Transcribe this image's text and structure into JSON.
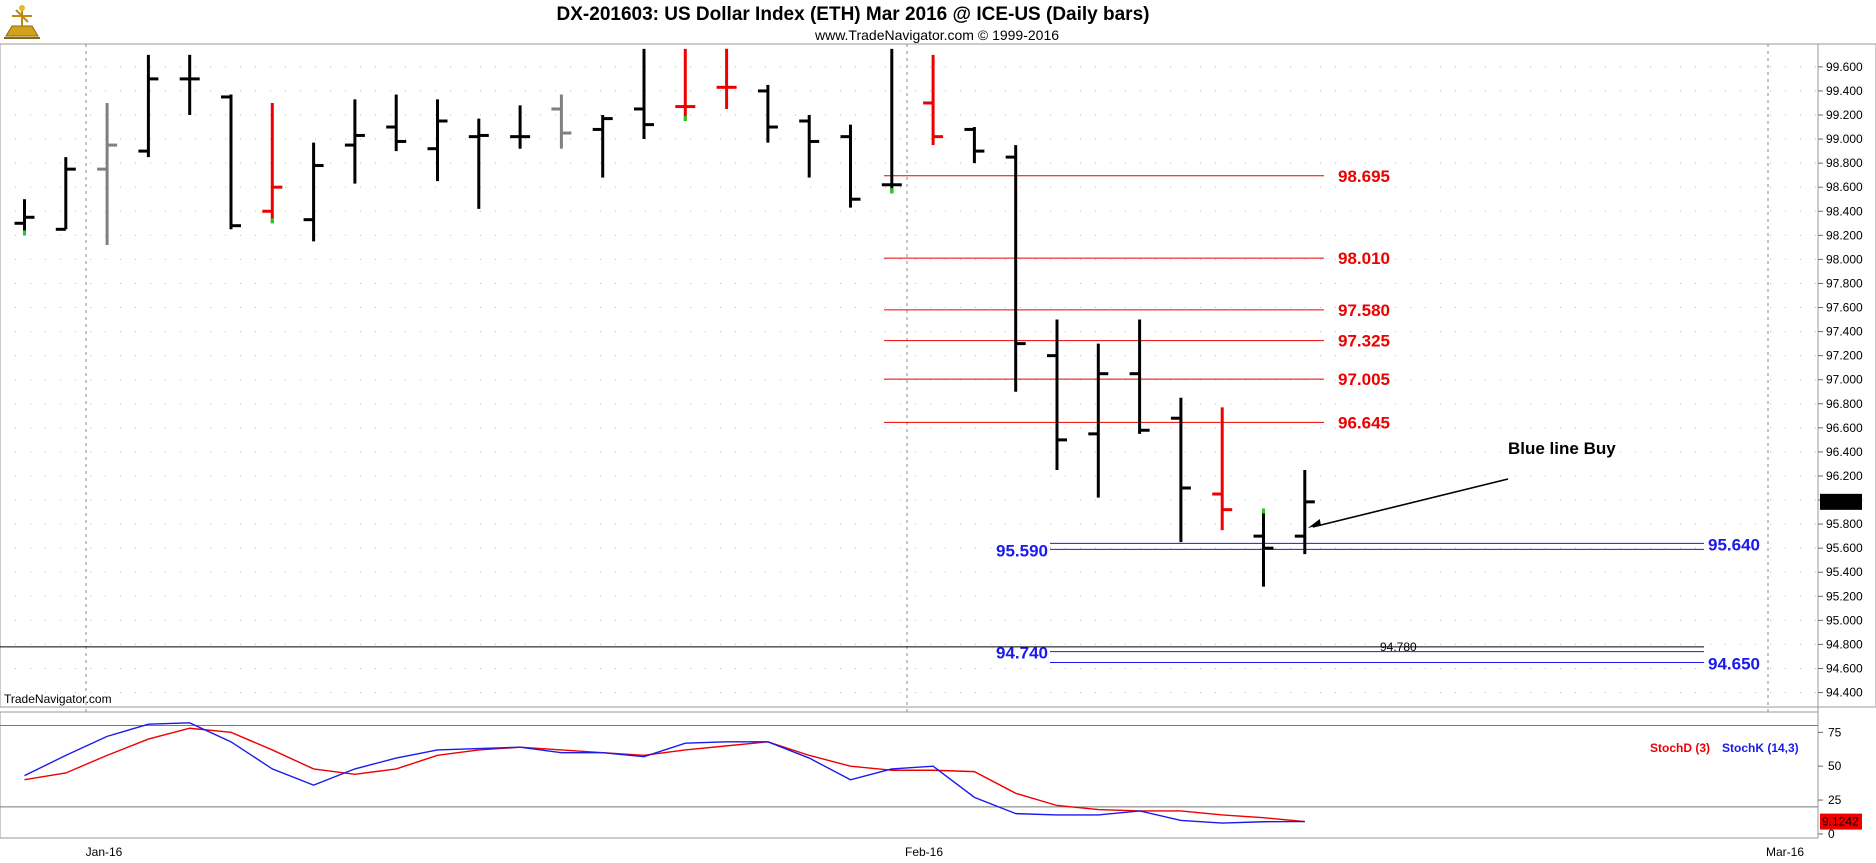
{
  "header": {
    "title": "DX-201603:  US Dollar Index (ETH) Mar 2016 @ ICE-US  (Daily bars)",
    "subtitle": "www.TradeNavigator.com © 1999-2016"
  },
  "watermark": "TradeNavigator.com",
  "icons": [
    "sextant-logo-icon"
  ],
  "colors": {
    "up_bar": "#000000",
    "down_bar": "#ee0000",
    "neutral_bar": "#808080",
    "tick_green": "#22cc22",
    "resistance": "#ee0000",
    "support": "#1a1aee"
  },
  "chart_data": [
    {
      "type": "ohlc",
      "title": "DX-201603:  US Dollar Index (ETH) Mar 2016 @ ICE-US  (Daily bars)",
      "x_tick_labels": [
        "Jan-16",
        "Feb-16",
        "Mar-16"
      ],
      "ylim": [
        94.3,
        99.7
      ],
      "y_tick_labels": [
        "99.600",
        "99.400",
        "99.200",
        "99.000",
        "98.800",
        "98.600",
        "98.400",
        "98.200",
        "98.000",
        "97.800",
        "97.600",
        "97.400",
        "97.200",
        "97.000",
        "96.800",
        "96.600",
        "96.400",
        "96.200",
        "96.000",
        "95.800",
        "95.600",
        "95.400",
        "95.200",
        "95.000",
        "94.800",
        "94.600",
        "94.400"
      ],
      "last_price_label": "95.985",
      "bars": [
        {
          "o": 98.3,
          "h": 98.5,
          "l": 98.2,
          "c": 98.35,
          "color": "black",
          "lowtick": "green"
        },
        {
          "o": 98.25,
          "h": 98.85,
          "l": 98.25,
          "c": 98.75,
          "color": "black"
        },
        {
          "o": 98.75,
          "h": 99.3,
          "l": 98.12,
          "c": 98.95,
          "color": "gray"
        },
        {
          "o": 98.9,
          "h": 99.7,
          "l": 98.85,
          "c": 99.5,
          "color": "black"
        },
        {
          "o": 99.5,
          "h": 99.7,
          "l": 99.2,
          "c": 99.5,
          "color": "black"
        },
        {
          "o": 99.35,
          "h": 99.37,
          "l": 98.25,
          "c": 98.28,
          "color": "black"
        },
        {
          "o": 98.4,
          "h": 99.3,
          "l": 98.3,
          "c": 98.6,
          "color": "red",
          "lowtick": "green"
        },
        {
          "o": 98.33,
          "h": 98.97,
          "l": 98.15,
          "c": 98.78,
          "color": "black"
        },
        {
          "o": 98.95,
          "h": 99.33,
          "l": 98.63,
          "c": 99.03,
          "color": "black"
        },
        {
          "o": 99.1,
          "h": 99.37,
          "l": 98.9,
          "c": 98.98,
          "color": "black"
        },
        {
          "o": 98.92,
          "h": 99.33,
          "l": 98.65,
          "c": 99.15,
          "color": "black"
        },
        {
          "o": 99.02,
          "h": 99.17,
          "l": 98.42,
          "c": 99.03,
          "color": "black"
        },
        {
          "o": 99.02,
          "h": 99.28,
          "l": 98.92,
          "c": 99.02,
          "color": "black"
        },
        {
          "o": 99.25,
          "h": 99.37,
          "l": 98.92,
          "c": 99.05,
          "color": "gray"
        },
        {
          "o": 99.08,
          "h": 99.2,
          "l": 98.68,
          "c": 99.17,
          "color": "black"
        },
        {
          "o": 99.25,
          "h": 99.75,
          "l": 99.0,
          "c": 99.12,
          "color": "black"
        },
        {
          "o": 99.27,
          "h": 99.75,
          "l": 99.15,
          "c": 99.27,
          "color": "red",
          "lowtick": "green"
        },
        {
          "o": 99.43,
          "h": 99.75,
          "l": 99.25,
          "c": 99.43,
          "color": "red"
        },
        {
          "o": 99.4,
          "h": 99.45,
          "l": 98.97,
          "c": 99.1,
          "color": "black"
        },
        {
          "o": 99.15,
          "h": 99.2,
          "l": 98.68,
          "c": 98.98,
          "color": "black"
        },
        {
          "o": 99.02,
          "h": 99.12,
          "l": 98.43,
          "c": 98.5,
          "color": "black"
        },
        {
          "o": 98.62,
          "h": 99.75,
          "l": 98.55,
          "c": 98.62,
          "color": "black",
          "lowtick": "green"
        },
        {
          "o": 99.3,
          "h": 99.7,
          "l": 98.95,
          "c": 99.02,
          "color": "red"
        },
        {
          "o": 99.08,
          "h": 99.1,
          "l": 98.8,
          "c": 98.9,
          "color": "black"
        },
        {
          "o": 98.85,
          "h": 98.95,
          "l": 96.9,
          "c": 97.3,
          "color": "black"
        },
        {
          "o": 97.2,
          "h": 97.5,
          "l": 96.25,
          "c": 96.5,
          "color": "black"
        },
        {
          "o": 96.55,
          "h": 97.3,
          "l": 96.02,
          "c": 97.05,
          "color": "black"
        },
        {
          "o": 97.05,
          "h": 97.5,
          "l": 96.55,
          "c": 96.58,
          "color": "black"
        },
        {
          "o": 96.68,
          "h": 96.85,
          "l": 95.65,
          "c": 96.1,
          "color": "black"
        },
        {
          "o": 96.05,
          "h": 96.77,
          "l": 95.75,
          "c": 95.92,
          "color": "red"
        },
        {
          "o": 95.7,
          "h": 95.93,
          "l": 95.28,
          "c": 95.6,
          "color": "black",
          "hightick": "green"
        },
        {
          "o": 95.7,
          "h": 96.25,
          "l": 95.55,
          "c": 95.985,
          "color": "black"
        }
      ],
      "levels": [
        {
          "value": 98.695,
          "label": "98.695",
          "color": "red"
        },
        {
          "value": 98.01,
          "label": "98.010",
          "color": "red"
        },
        {
          "value": 97.58,
          "label": "97.580",
          "color": "red"
        },
        {
          "value": 97.325,
          "label": "97.325",
          "color": "red"
        },
        {
          "value": 97.005,
          "label": "97.005",
          "color": "red"
        },
        {
          "value": 96.645,
          "label": "96.645",
          "color": "red"
        }
      ],
      "support_lines": [
        {
          "value": 95.64,
          "right_label": "95.640"
        },
        {
          "value": 95.59,
          "left_label": "95.590"
        },
        {
          "value": 94.74,
          "left_label": "94.740"
        },
        {
          "value": 94.65,
          "right_label": "94.650"
        }
      ],
      "horizontal_line": {
        "value": 94.78,
        "label": "94.780"
      },
      "annotation": {
        "text": "Blue line Buy"
      }
    },
    {
      "type": "line",
      "title": "",
      "legend": [
        "StochD (3)",
        "StochK (14,3)"
      ],
      "ylim": [
        0,
        85
      ],
      "y_tick_labels": [
        "75",
        "50",
        "25",
        "0"
      ],
      "hlines": [
        80,
        20
      ],
      "last_value_label": "9.1242",
      "series": [
        {
          "name": "StochD (3)",
          "color": "red",
          "values": [
            40,
            45,
            58,
            70,
            78,
            75,
            62,
            48,
            44,
            48,
            58,
            62,
            64,
            62,
            60,
            58,
            62,
            65,
            68,
            58,
            50,
            47,
            47,
            46,
            30,
            21,
            18,
            17,
            17,
            14,
            12,
            9.1
          ]
        },
        {
          "name": "StochK (14,3)",
          "color": "blue",
          "values": [
            43,
            58,
            72,
            81,
            82,
            68,
            48,
            36,
            48,
            56,
            62,
            63,
            64,
            60,
            60,
            57,
            67,
            68,
            68,
            56,
            40,
            48,
            50,
            27,
            15,
            14,
            14,
            17,
            10,
            8,
            9,
            9.1
          ]
        }
      ]
    }
  ]
}
